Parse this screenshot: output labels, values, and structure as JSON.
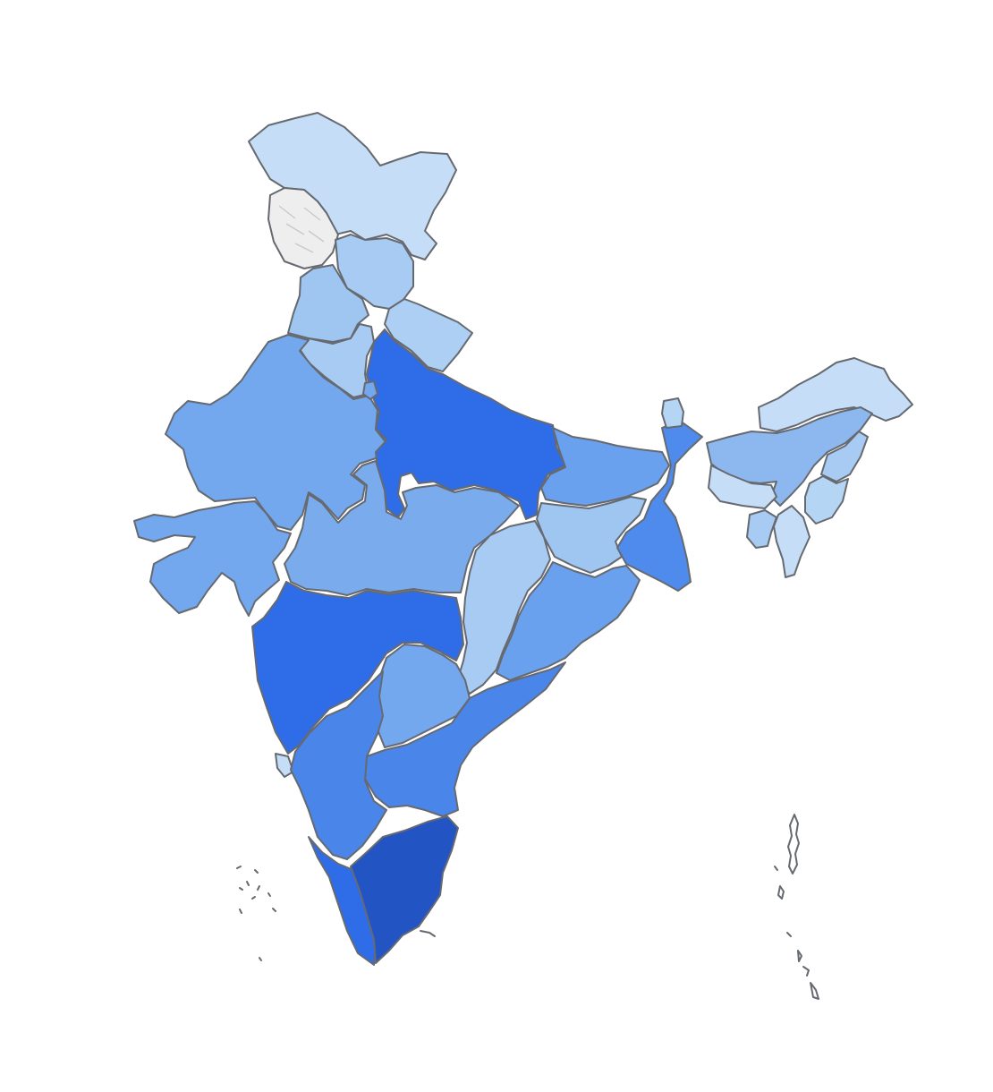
{
  "map": {
    "colors": {
      "stroke": "#666a70",
      "background": "#ffffff",
      "no_data": "#eeeeee",
      "scale": [
        "#c5ddf6",
        "#a7cbf2",
        "#8cb8ef",
        "#73a7ee",
        "#5b93ed",
        "#4a86ea",
        "#2f6ce8",
        "#2354c4"
      ]
    },
    "regions": [
      {
        "name": "jammu-kashmir",
        "color": "#c5ddf6"
      },
      {
        "name": "ladakh-hatched",
        "color": "#eeeeee"
      },
      {
        "name": "himachal-pradesh",
        "color": "#a7cbf2"
      },
      {
        "name": "punjab",
        "color": "#9fc5f1"
      },
      {
        "name": "uttarakhand",
        "color": "#adcff4"
      },
      {
        "name": "haryana",
        "color": "#a7cbf2"
      },
      {
        "name": "rajasthan",
        "color": "#73a7ee"
      },
      {
        "name": "uttar-pradesh",
        "color": "#2f6ce8"
      },
      {
        "name": "gujarat",
        "color": "#73a7ee"
      },
      {
        "name": "madhya-pradesh",
        "color": "#7aaced"
      },
      {
        "name": "bihar",
        "color": "#6aa1ee"
      },
      {
        "name": "jharkhand",
        "color": "#9fc5f1"
      },
      {
        "name": "west-bengal",
        "color": "#4f8bec"
      },
      {
        "name": "chhattisgarh",
        "color": "#a7cbf2"
      },
      {
        "name": "odisha",
        "color": "#6aa1ee"
      },
      {
        "name": "maharashtra",
        "color": "#2f6ce8"
      },
      {
        "name": "telangana",
        "color": "#73a7ee"
      },
      {
        "name": "andhra-pradesh",
        "color": "#4a86ea"
      },
      {
        "name": "goa",
        "color": "#c5ddf6"
      },
      {
        "name": "karnataka",
        "color": "#4a86ea"
      },
      {
        "name": "kerala",
        "color": "#2f6ce8"
      },
      {
        "name": "tamil-nadu",
        "color": "#2354c4"
      },
      {
        "name": "sikkim",
        "color": "#b5d5f5"
      },
      {
        "name": "arunachal-pradesh",
        "color": "#c5ddf6"
      },
      {
        "name": "assam",
        "color": "#8cb8ef"
      },
      {
        "name": "meghalaya",
        "color": "#c5ddf6"
      },
      {
        "name": "nagaland",
        "color": "#a7cbf2"
      },
      {
        "name": "manipur",
        "color": "#b5d5f5"
      },
      {
        "name": "mizoram",
        "color": "#c5ddf6"
      },
      {
        "name": "tripura",
        "color": "#a7cbf2"
      },
      {
        "name": "delhi",
        "color": "#73a7ee"
      }
    ]
  }
}
